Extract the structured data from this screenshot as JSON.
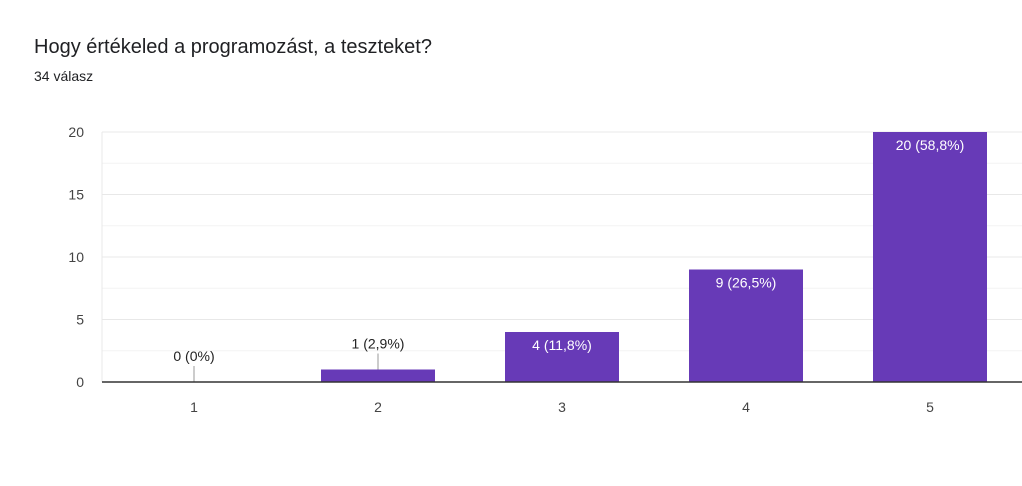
{
  "form": {
    "question": "Hogy értékeled a programozást, a teszteket?",
    "responses": "34 válasz"
  },
  "colors": {
    "bar": "#673ab7",
    "grid": "#e8e8e8",
    "axis": "#333333"
  },
  "chart_data": {
    "type": "bar",
    "categories": [
      "1",
      "2",
      "3",
      "4",
      "5"
    ],
    "values": [
      0,
      1,
      4,
      9,
      20
    ],
    "data_labels": [
      "0 (0%)",
      "1 (2,9%)",
      "4 (11,8%)",
      "9 (26,5%)",
      "20 (58,8%)"
    ],
    "yticks": [
      0,
      5,
      10,
      15,
      20
    ],
    "ylim": [
      0,
      20
    ],
    "minor_gridlines": true,
    "legend": "none"
  }
}
